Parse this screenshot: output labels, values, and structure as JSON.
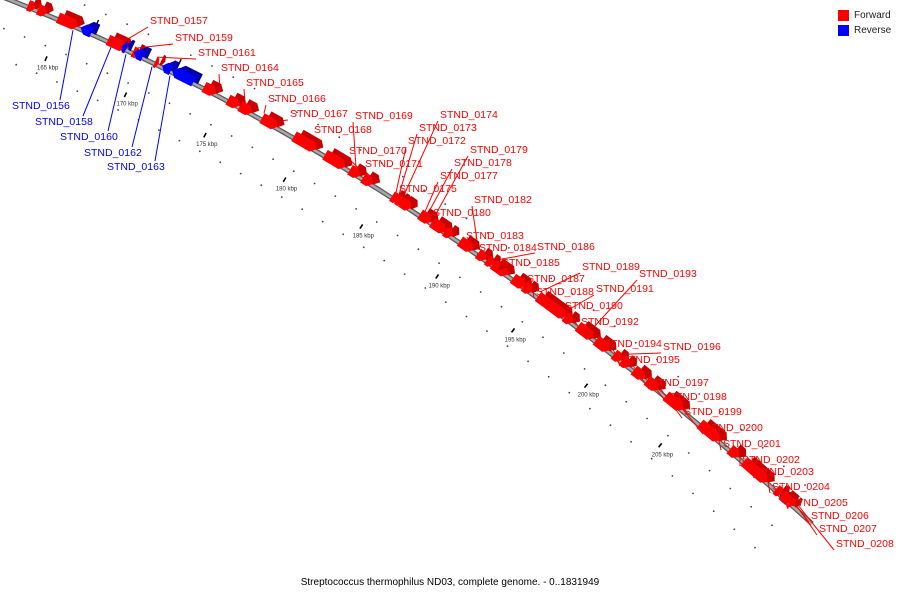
{
  "caption": "Streptococcus thermophilus ND03, complete genome. - 0..1831949",
  "legend": [
    {
      "label": "Forward",
      "color": "#ff0000"
    },
    {
      "label": "Reverse",
      "color": "#0000ff"
    }
  ],
  "colors": {
    "forward": "#ff0000",
    "forward_dark": "#c80000",
    "reverse": "#0000ff",
    "reverse_dark": "#0000a8",
    "backbone": "#8c8c8c"
  },
  "ticks": [
    "165 kbp",
    "170 kbp",
    "175 kbp",
    "180 kbp",
    "185 kbp",
    "190 kbp",
    "195 kbp",
    "200 kbp",
    "205 kbp"
  ],
  "genes": [
    {
      "id": "STND_0157",
      "strand": "forward"
    },
    {
      "id": "STND_0159",
      "strand": "forward"
    },
    {
      "id": "STND_0161",
      "strand": "forward"
    },
    {
      "id": "STND_0164",
      "strand": "forward"
    },
    {
      "id": "STND_0165",
      "strand": "forward"
    },
    {
      "id": "STND_0166",
      "strand": "forward"
    },
    {
      "id": "STND_0167",
      "strand": "forward"
    },
    {
      "id": "STND_0168",
      "strand": "forward"
    },
    {
      "id": "STND_0169",
      "strand": "forward"
    },
    {
      "id": "STND_0170",
      "strand": "forward"
    },
    {
      "id": "STND_0171",
      "strand": "forward"
    },
    {
      "id": "STND_0172",
      "strand": "forward"
    },
    {
      "id": "STND_0173",
      "strand": "forward"
    },
    {
      "id": "STND_0174",
      "strand": "forward"
    },
    {
      "id": "STND_0175",
      "strand": "forward"
    },
    {
      "id": "STND_0177",
      "strand": "forward"
    },
    {
      "id": "STND_0178",
      "strand": "forward"
    },
    {
      "id": "STND_0179",
      "strand": "forward"
    },
    {
      "id": "STND_0180",
      "strand": "forward"
    },
    {
      "id": "STND_0182",
      "strand": "forward"
    },
    {
      "id": "STND_0183",
      "strand": "forward"
    },
    {
      "id": "STND_0184",
      "strand": "forward"
    },
    {
      "id": "STND_0185",
      "strand": "forward"
    },
    {
      "id": "STND_0186",
      "strand": "forward"
    },
    {
      "id": "STND_0187",
      "strand": "forward"
    },
    {
      "id": "STND_0188",
      "strand": "forward"
    },
    {
      "id": "STND_0189",
      "strand": "forward"
    },
    {
      "id": "STND_0190",
      "strand": "forward"
    },
    {
      "id": "STND_0191",
      "strand": "forward"
    },
    {
      "id": "STND_0192",
      "strand": "forward"
    },
    {
      "id": "STND_0193",
      "strand": "forward"
    },
    {
      "id": "STND_0194",
      "strand": "forward"
    },
    {
      "id": "STND_0195",
      "strand": "forward"
    },
    {
      "id": "STND_0196",
      "strand": "forward"
    },
    {
      "id": "STND_0197",
      "strand": "forward"
    },
    {
      "id": "STND_0198",
      "strand": "forward"
    },
    {
      "id": "STND_0199",
      "strand": "forward"
    },
    {
      "id": "STND_0200",
      "strand": "forward"
    },
    {
      "id": "STND_0201",
      "strand": "forward"
    },
    {
      "id": "STND_0202",
      "strand": "forward"
    },
    {
      "id": "STND_0203",
      "strand": "forward"
    },
    {
      "id": "STND_0204",
      "strand": "forward"
    },
    {
      "id": "STND_0205",
      "strand": "forward"
    },
    {
      "id": "STND_0206",
      "strand": "forward"
    },
    {
      "id": "STND_0207",
      "strand": "forward"
    },
    {
      "id": "STND_0208",
      "strand": "forward"
    },
    {
      "id": "STND_0156",
      "strand": "reverse"
    },
    {
      "id": "STND_0158",
      "strand": "reverse"
    },
    {
      "id": "STND_0160",
      "strand": "reverse"
    },
    {
      "id": "STND_0162",
      "strand": "reverse"
    },
    {
      "id": "STND_0163",
      "strand": "reverse"
    }
  ]
}
